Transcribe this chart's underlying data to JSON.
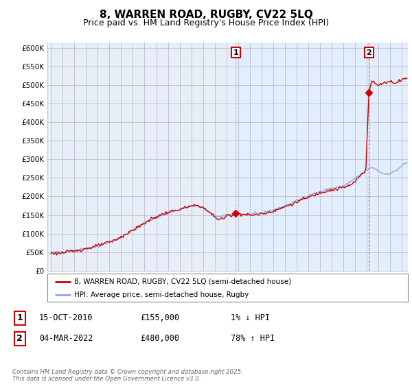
{
  "title": "8, WARREN ROAD, RUGBY, CV22 5LQ",
  "subtitle": "Price paid vs. HM Land Registry's House Price Index (HPI)",
  "title_fontsize": 11,
  "subtitle_fontsize": 9,
  "ylabel_ticks": [
    "£0",
    "£50K",
    "£100K",
    "£150K",
    "£200K",
    "£250K",
    "£300K",
    "£350K",
    "£400K",
    "£450K",
    "£500K",
    "£550K",
    "£600K"
  ],
  "ytick_values": [
    0,
    50000,
    100000,
    150000,
    200000,
    250000,
    300000,
    350000,
    400000,
    450000,
    500000,
    550000,
    600000
  ],
  "ylim": [
    0,
    615000
  ],
  "xlim_start": 1994.7,
  "xlim_end": 2025.5,
  "xtick_years": [
    1995,
    1996,
    1997,
    1998,
    1999,
    2000,
    2001,
    2002,
    2003,
    2004,
    2005,
    2006,
    2007,
    2008,
    2009,
    2010,
    2011,
    2012,
    2013,
    2014,
    2015,
    2016,
    2017,
    2018,
    2019,
    2020,
    2021,
    2022,
    2023,
    2024,
    2025
  ],
  "hpi_color": "#88aadd",
  "price_color": "#cc0000",
  "bg_color_left": "#e8eef8",
  "bg_color_right": "#ddeeff",
  "grid_color": "#bbbbcc",
  "legend_label_price": "8, WARREN ROAD, RUGBY, CV22 5LQ (semi-detached house)",
  "legend_label_hpi": "HPI: Average price, semi-detached house, Rugby",
  "point1_label": "1",
  "point1_date": "15-OCT-2010",
  "point1_price": "£155,000",
  "point1_hpi": "1% ↓ HPI",
  "point1_year": 2010.79,
  "point1_value": 155000,
  "point2_label": "2",
  "point2_date": "04-MAR-2022",
  "point2_price": "£480,000",
  "point2_hpi": "78% ↑ HPI",
  "point2_year": 2022.17,
  "point2_value": 480000,
  "footer": "Contains HM Land Registry data © Crown copyright and database right 2025.\nThis data is licensed under the Open Government Licence v3.0."
}
